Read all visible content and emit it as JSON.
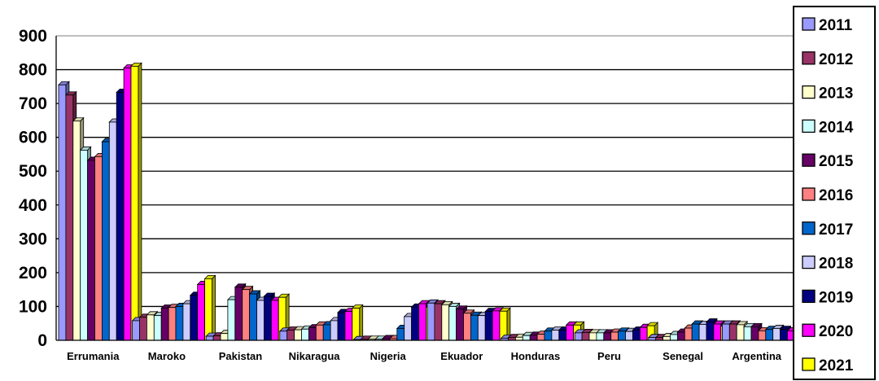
{
  "chart_data": {
    "type": "bar",
    "categories": [
      "Errumania",
      "Maroko",
      "Pakistan",
      "Nikaragua",
      "Nigeria",
      "Ekuador",
      "Honduras",
      "Peru",
      "Senegal",
      "Argentina"
    ],
    "ylim": [
      0,
      900
    ],
    "yticks": [
      0,
      100,
      200,
      300,
      400,
      500,
      600,
      700,
      800,
      900
    ],
    "grid": true,
    "legend_position": "right",
    "style": "3d-clustered-bars",
    "series": [
      {
        "name": "2011",
        "color": "#9999FF",
        "values": [
          755,
          58,
          12,
          27,
          2,
          110,
          6,
          22,
          8,
          48
        ]
      },
      {
        "name": "2012",
        "color": "#993366",
        "values": [
          725,
          68,
          13,
          30,
          3,
          108,
          8,
          23,
          8,
          48
        ]
      },
      {
        "name": "2013",
        "color": "#FFFFCC",
        "values": [
          648,
          75,
          20,
          31,
          3,
          105,
          9,
          22,
          11,
          46
        ]
      },
      {
        "name": "2014",
        "color": "#CCFFFF",
        "values": [
          562,
          73,
          120,
          33,
          3,
          100,
          14,
          22,
          17,
          40
        ]
      },
      {
        "name": "2015",
        "color": "#660066",
        "values": [
          532,
          95,
          157,
          37,
          5,
          92,
          15,
          22,
          24,
          40
        ]
      },
      {
        "name": "2016",
        "color": "#FF8080",
        "values": [
          543,
          97,
          150,
          45,
          5,
          80,
          18,
          24,
          36,
          28
        ]
      },
      {
        "name": "2017",
        "color": "#0066CC",
        "values": [
          587,
          100,
          137,
          46,
          35,
          74,
          27,
          27,
          48,
          32
        ]
      },
      {
        "name": "2018",
        "color": "#CCCCFF",
        "values": [
          645,
          108,
          118,
          58,
          70,
          73,
          30,
          26,
          47,
          35
        ]
      },
      {
        "name": "2019",
        "color": "#000080",
        "values": [
          733,
          133,
          130,
          82,
          98,
          85,
          30,
          30,
          54,
          32
        ]
      },
      {
        "name": "2020",
        "color": "#FF00FF",
        "values": [
          805,
          165,
          118,
          85,
          108,
          87,
          45,
          38,
          48,
          28
        ]
      },
      {
        "name": "2021",
        "color": "#FFFF00",
        "values": [
          810,
          182,
          127,
          95,
          98,
          86,
          45,
          43,
          42,
          35
        ]
      }
    ]
  }
}
